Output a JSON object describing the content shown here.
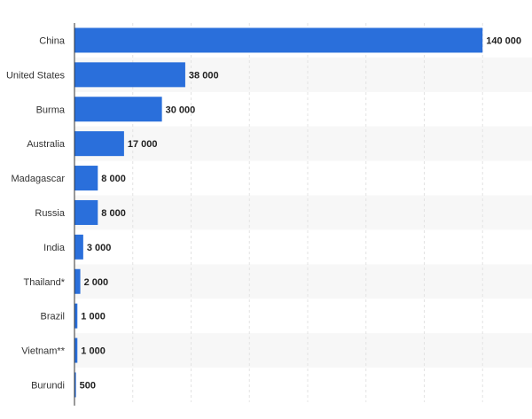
{
  "chart_data": {
    "type": "bar",
    "orientation": "horizontal",
    "categories": [
      "China",
      "United States",
      "Burma",
      "Australia",
      "Madagascar",
      "Russia",
      "India",
      "Thailand*",
      "Brazil",
      "Vietnam**",
      "Burundi"
    ],
    "values": [
      140000,
      38000,
      30000,
      17000,
      8000,
      8000,
      3000,
      2000,
      1000,
      1000,
      500
    ],
    "value_labels": [
      "140 000",
      "38 000",
      "30 000",
      "17 000",
      "8 000",
      "8 000",
      "3 000",
      "2 000",
      "1 000",
      "1 000",
      "500"
    ],
    "xlim": [
      0,
      160000
    ],
    "grid": true,
    "colors": {
      "bar": "#2a6fdb",
      "band": "#f7f7f7",
      "grid": "#e3e3e3",
      "axis": "#333333"
    }
  }
}
